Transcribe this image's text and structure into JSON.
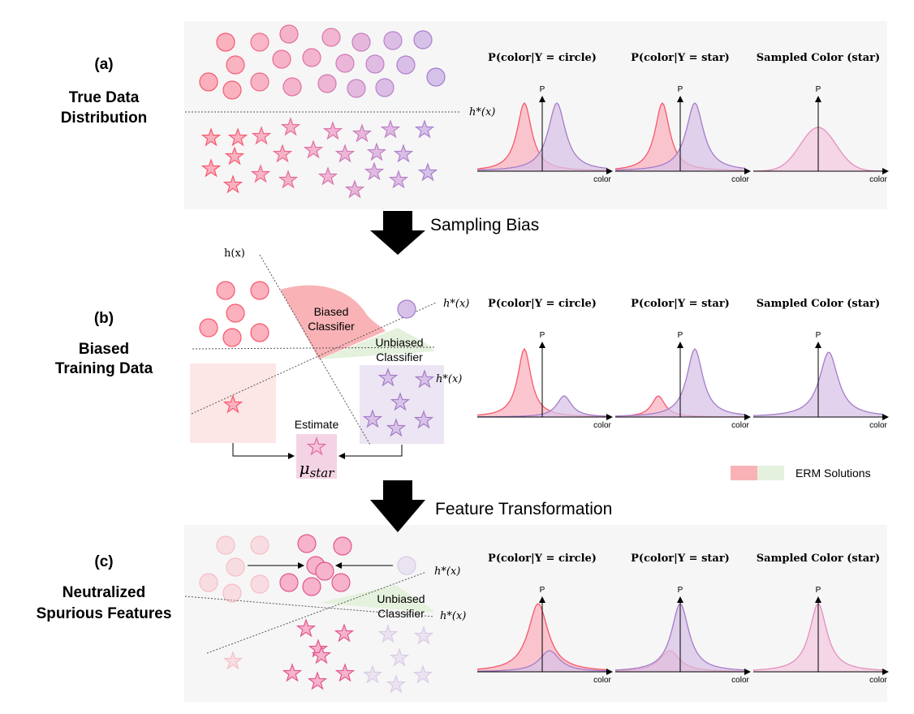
{
  "panels": {
    "a": {
      "letter": "(a)",
      "title_line1": "True Data",
      "title_line2": "Distribution"
    },
    "b": {
      "letter": "(b)",
      "title_line1": "Biased",
      "title_line2": "Training Data"
    },
    "c": {
      "letter": "(c)",
      "title_line1": "Neutralized",
      "title_line2": "Spurious Features"
    }
  },
  "arrows": {
    "sampling_bias": "Sampling Bias",
    "feature_transformation": "Feature Transformation"
  },
  "plot_titles": {
    "circle": "P(color|Y = circle)",
    "star": "P(color|Y = star)",
    "sampled": "Sampled Color (star)"
  },
  "axis": {
    "y_label": "P",
    "x_label": "color"
  },
  "boundaries": {
    "h_star": "h*(x)",
    "h": "h(x)"
  },
  "annotations": {
    "biased_classifier_1": "Biased",
    "biased_classifier_2": "Classifier",
    "unbiased_classifier_1": "Unbiased",
    "unbiased_classifier_2": "Classifier",
    "estimate": "Estimate",
    "mu_star": "μstar"
  },
  "legend": {
    "erm": "ERM Solutions"
  },
  "colors": {
    "red": "#f8576b",
    "red_fill": "#f9b3bf",
    "pink": "#e58fbf",
    "purple": "#a57cc9",
    "purple_fill": "#d8c3e7",
    "panel_bg": "#f6f6f6",
    "green_fill": "#e4f1dd"
  }
}
